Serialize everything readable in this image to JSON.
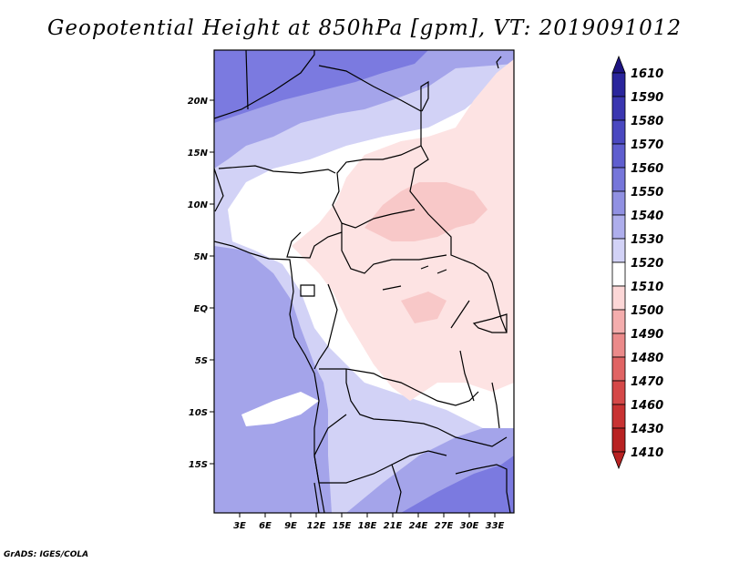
{
  "title": "Geopotential Height at 850hPa [gpm], VT: 2019091012",
  "credit": "GrADS: IGES/COLA",
  "map": {
    "lat_labels": [
      "20N",
      "15N",
      "10N",
      "5N",
      "EQ",
      "5S",
      "10S",
      "15S"
    ],
    "lon_labels": [
      "3E",
      "6E",
      "9E",
      "12E",
      "15E",
      "18E",
      "21E",
      "24E",
      "27E",
      "30E",
      "33E"
    ]
  },
  "colorbar": {
    "levels": [
      "1610",
      "1590",
      "1580",
      "1570",
      "1560",
      "1550",
      "1540",
      "1530",
      "1520",
      "1510",
      "1500",
      "1490",
      "1480",
      "1470",
      "1460",
      "1430",
      "1410"
    ],
    "colors": [
      "#1e1482",
      "#2a259c",
      "#3a36b0",
      "#4a48c0",
      "#5f5ecf",
      "#7676da",
      "#9191e2",
      "#aeaeec",
      "#d2d2f6",
      "#ffffff",
      "#fcd7d7",
      "#f4adad",
      "#eb8a8a",
      "#e06464",
      "#d54848",
      "#c83232",
      "#b82222"
    ]
  },
  "colors": {
    "blue_dark": "#7b7ae0",
    "blue_mid": "#a4a4ea",
    "blue_light": "#d2d2f6",
    "white": "#ffffff",
    "pink_light": "#fde3e3",
    "pink_mid": "#f8c8c8"
  }
}
